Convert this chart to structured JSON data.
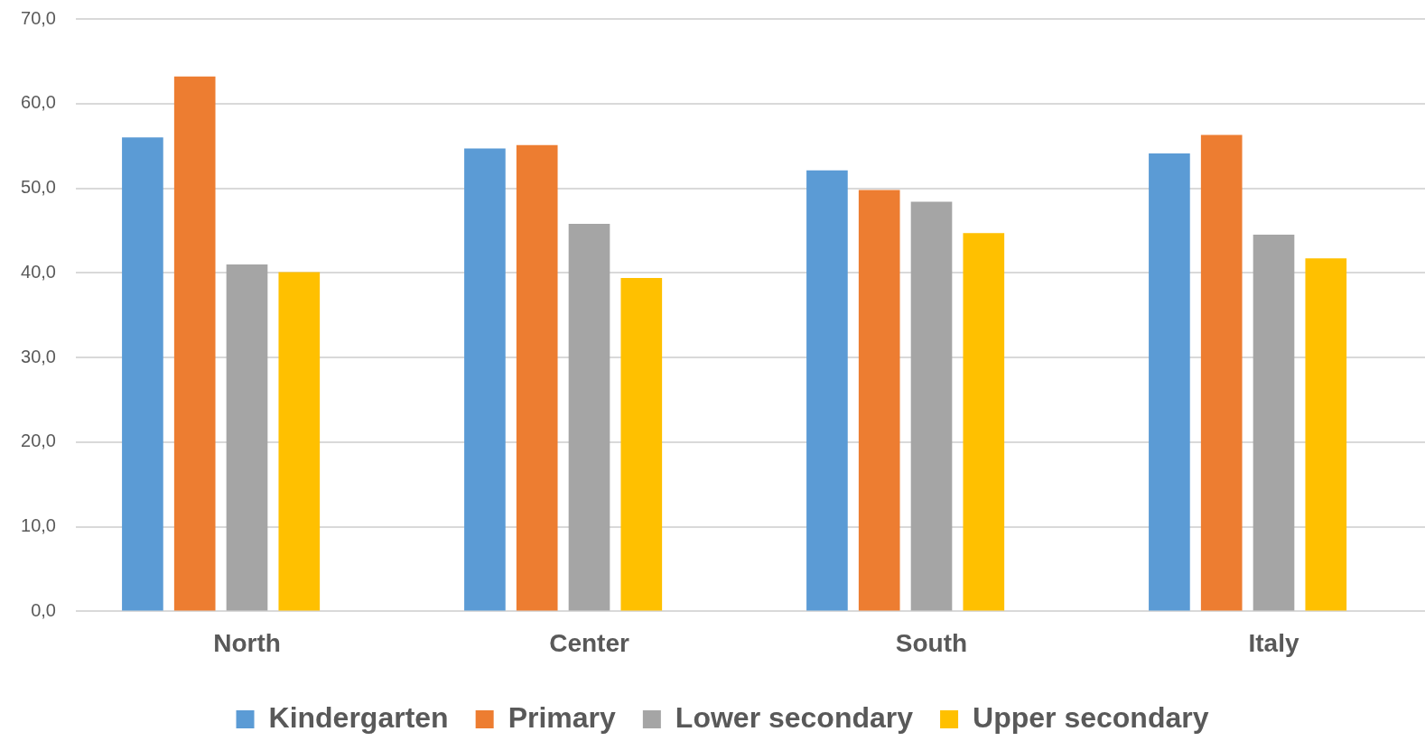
{
  "chart_data": {
    "type": "bar",
    "categories": [
      "North",
      "Center",
      "South",
      "Italy"
    ],
    "series": [
      {
        "name": "Kindergarten",
        "color": "#5b9bd5",
        "values": [
          56.0,
          54.7,
          52.1,
          54.1
        ]
      },
      {
        "name": "Primary",
        "color": "#ed7d31",
        "values": [
          63.2,
          55.1,
          49.8,
          56.3
        ]
      },
      {
        "name": "Lower secondary",
        "color": "#a5a5a5",
        "values": [
          41.0,
          45.8,
          48.4,
          44.5
        ]
      },
      {
        "name": "Upper secondary",
        "color": "#ffc000",
        "values": [
          40.1,
          39.4,
          44.7,
          41.7
        ]
      }
    ],
    "ylim": [
      0,
      70
    ],
    "yticks": [
      {
        "value": 0,
        "label": "0,0"
      },
      {
        "value": 10,
        "label": "10,0"
      },
      {
        "value": 20,
        "label": "20,0"
      },
      {
        "value": 30,
        "label": "30,0"
      },
      {
        "value": 40,
        "label": "40,0"
      },
      {
        "value": 50,
        "label": "50,0"
      },
      {
        "value": 60,
        "label": "60,0"
      },
      {
        "value": 70,
        "label": "70,0"
      }
    ],
    "grid": "y",
    "legend": "bottom"
  }
}
